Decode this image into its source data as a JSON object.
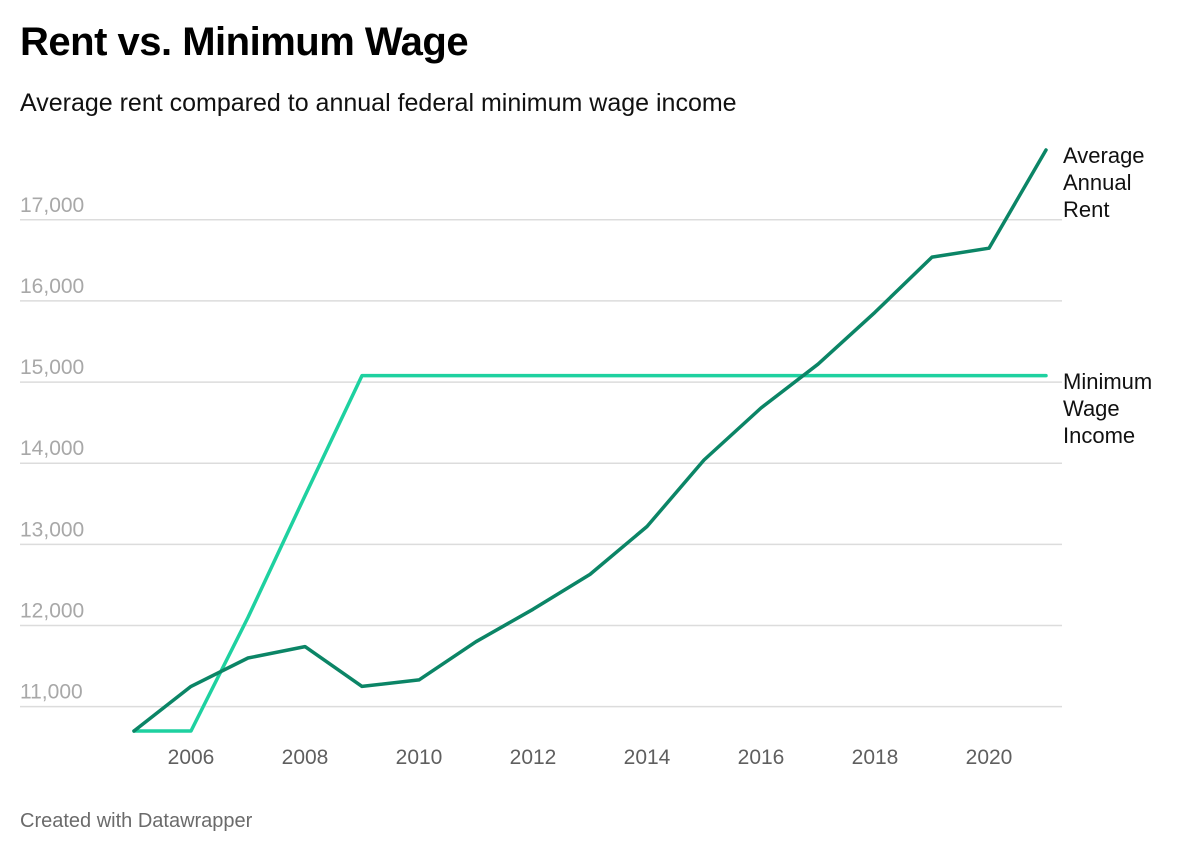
{
  "header": {
    "title": "Rent vs. Minimum Wage",
    "subtitle": "Average rent compared to annual federal minimum wage income"
  },
  "footer": {
    "credit": "Created with Datawrapper"
  },
  "chart_data": {
    "type": "line",
    "title": "Rent vs. Minimum Wage",
    "subtitle": "Average rent compared to annual federal minimum wage income",
    "xlabel": "",
    "ylabel": "",
    "x": [
      2005,
      2006,
      2007,
      2008,
      2009,
      2010,
      2011,
      2012,
      2013,
      2014,
      2015,
      2016,
      2017,
      2018,
      2019,
      2020,
      2021
    ],
    "xlim": [
      2005,
      2021
    ],
    "ylim": [
      10700,
      17860
    ],
    "x_ticks": [
      2006,
      2008,
      2010,
      2012,
      2014,
      2016,
      2018,
      2020
    ],
    "x_tick_labels": [
      "2006",
      "2008",
      "2010",
      "2012",
      "2014",
      "2016",
      "2018",
      "2020"
    ],
    "y_ticks": [
      11000,
      12000,
      13000,
      14000,
      15000,
      16000,
      17000
    ],
    "y_tick_labels": [
      "11,000",
      "12,000",
      "13,000",
      "14,000",
      "15,000",
      "16,000",
      "17,000"
    ],
    "grid": true,
    "legend": "direct labels at line ends (right)",
    "series": [
      {
        "name": "Average Annual Rent",
        "label_lines": [
          "Average",
          "Annual",
          "Rent"
        ],
        "color": "#0b8566",
        "values": [
          10700,
          11250,
          11600,
          11740,
          11250,
          11330,
          11800,
          12200,
          12630,
          13220,
          14040,
          14680,
          15220,
          15860,
          16540,
          16650,
          17860
        ]
      },
      {
        "name": "Minimum Wage Income",
        "label_lines": [
          "Minimum",
          "Wage",
          "Income"
        ],
        "color": "#1ed1a0",
        "values": [
          10700,
          10700,
          12100,
          13600,
          15080,
          15080,
          15080,
          15080,
          15080,
          15080,
          15080,
          15080,
          15080,
          15080,
          15080,
          15080,
          15080
        ]
      }
    ]
  }
}
